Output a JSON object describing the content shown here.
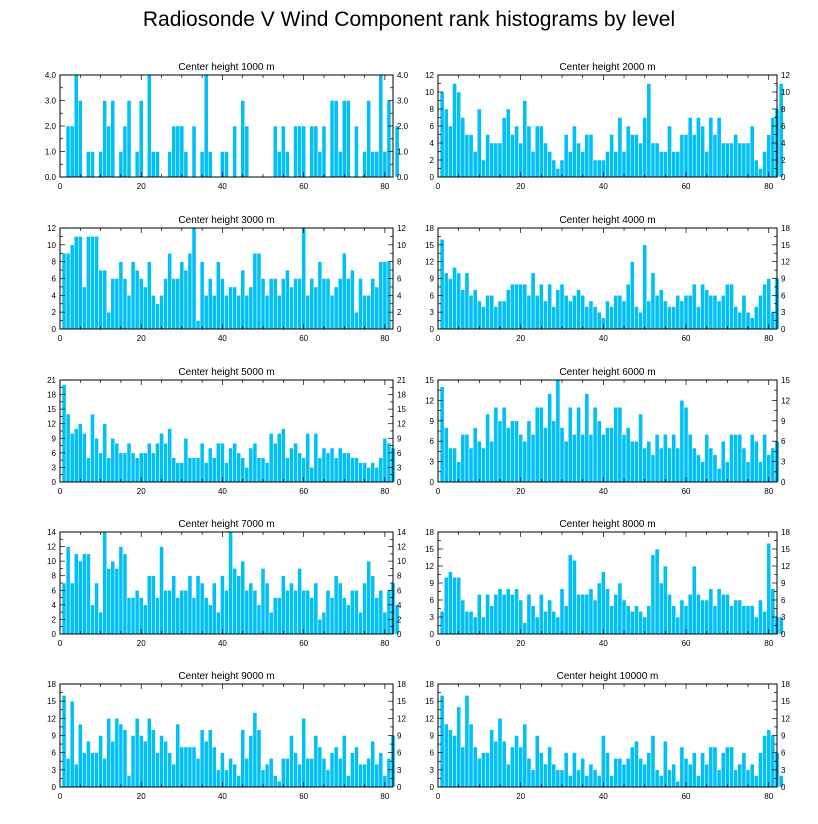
{
  "figure": {
    "title": "Radiosonde V Wind Component rank histograms by level",
    "bar_color": "#00C0F6",
    "background": "#ffffff"
  },
  "chart_data": [
    {
      "type": "bar",
      "title": "Center height 1000 m",
      "xlim": [
        0,
        82
      ],
      "ylim": [
        0,
        4
      ],
      "xticks": [
        0,
        20,
        40,
        60,
        80
      ],
      "yticks": [
        0,
        1,
        2,
        3,
        4
      ],
      "ytick_labels": [
        "0.0",
        "1.0",
        "2.0",
        "3.0",
        "4.0"
      ],
      "x_start": 1,
      "values": [
        0,
        2,
        2,
        4,
        3,
        0,
        1,
        1,
        0,
        1,
        3,
        2,
        3,
        0,
        1,
        2,
        3,
        0,
        1,
        3,
        0,
        4,
        1,
        1,
        0,
        0,
        1,
        2,
        2,
        2,
        1,
        0,
        2,
        0,
        1,
        4,
        1,
        0,
        0,
        1,
        1,
        0,
        2,
        0,
        3,
        2,
        0,
        0,
        0,
        0,
        0,
        0,
        2,
        1,
        2,
        1,
        0,
        2,
        2,
        2,
        0,
        2,
        2,
        1,
        2,
        0,
        3,
        3,
        1,
        3,
        3,
        0,
        2,
        0,
        1,
        3,
        1,
        1,
        4,
        1,
        3,
        0,
        2
      ]
    },
    {
      "type": "bar",
      "title": "Center height 2000 m",
      "xlim": [
        0,
        82
      ],
      "ylim": [
        0,
        12
      ],
      "xticks": [
        0,
        20,
        40,
        60,
        80
      ],
      "yticks": [
        0,
        2,
        4,
        6,
        8,
        10,
        12
      ],
      "x_start": 1,
      "values": [
        10,
        8,
        6,
        11,
        10,
        7,
        5,
        5,
        3,
        8,
        2,
        5,
        4,
        4,
        4,
        7,
        8,
        5,
        6,
        4,
        9,
        6,
        3,
        6,
        6,
        4,
        3,
        2,
        1,
        2,
        5,
        3,
        6,
        4,
        3,
        5,
        5,
        2,
        2,
        2,
        3,
        5,
        3,
        7,
        3,
        6,
        5,
        5,
        4,
        7,
        11,
        4,
        4,
        3,
        3,
        6,
        3,
        3,
        5,
        5,
        7,
        5,
        7,
        6,
        3,
        7,
        5,
        7,
        4,
        4,
        4,
        5,
        4,
        4,
        4,
        6,
        2,
        1,
        3,
        5,
        7,
        8,
        11
      ]
    },
    {
      "type": "bar",
      "title": "Center height 3000 m",
      "xlim": [
        0,
        82
      ],
      "ylim": [
        0,
        12
      ],
      "xticks": [
        0,
        20,
        40,
        60,
        80
      ],
      "yticks": [
        0,
        2,
        4,
        6,
        8,
        10,
        12
      ],
      "x_start": 1,
      "values": [
        9,
        9,
        10,
        11,
        11,
        5,
        11,
        11,
        11,
        7,
        7,
        2,
        6,
        6,
        8,
        6,
        4,
        8,
        7,
        6,
        5,
        8,
        4,
        3,
        4,
        6,
        9,
        6,
        6,
        8,
        7,
        9,
        12,
        1,
        8,
        4,
        6,
        4,
        8,
        6,
        4,
        5,
        5,
        4,
        7,
        4,
        5,
        9,
        9,
        6,
        4,
        6,
        6,
        4,
        6,
        7,
        5,
        6,
        6,
        12,
        4,
        6,
        5,
        8,
        6,
        6,
        4,
        5,
        6,
        9,
        6,
        7,
        2,
        6,
        4,
        4,
        6,
        5,
        8,
        8,
        8
      ]
    },
    {
      "type": "bar",
      "title": "Center height 4000 m",
      "xlim": [
        0,
        82
      ],
      "ylim": [
        0,
        18
      ],
      "xticks": [
        0,
        20,
        40,
        60,
        80
      ],
      "yticks": [
        0,
        3,
        6,
        9,
        12,
        15,
        18
      ],
      "x_start": 1,
      "values": [
        16,
        10,
        9,
        11,
        10,
        7,
        10,
        6,
        7,
        5,
        4,
        6,
        6,
        4,
        5,
        5,
        7,
        8,
        8,
        8,
        8,
        6,
        10,
        6,
        8,
        5,
        8,
        4,
        7,
        8,
        6,
        5,
        6,
        7,
        6,
        4,
        5,
        4,
        3,
        2,
        5,
        4,
        6,
        6,
        5,
        8,
        12,
        4,
        3,
        15,
        5,
        10,
        6,
        7,
        5,
        4,
        4,
        6,
        5,
        6,
        6,
        8,
        4,
        8,
        7,
        6,
        6,
        5,
        6,
        8,
        8,
        4,
        3,
        6,
        3,
        2,
        4,
        6,
        8,
        9,
        3,
        9
      ]
    },
    {
      "type": "bar",
      "title": "Center height 5000 m",
      "xlim": [
        0,
        82
      ],
      "ylim": [
        0,
        21
      ],
      "xticks": [
        0,
        20,
        40,
        60,
        80
      ],
      "yticks": [
        0,
        3,
        6,
        9,
        12,
        15,
        18,
        21
      ],
      "x_start": 1,
      "values": [
        20,
        14,
        10,
        11,
        12,
        10,
        5,
        14,
        9,
        6,
        12,
        5,
        9,
        8,
        6,
        6,
        8,
        6,
        5,
        6,
        6,
        8,
        6,
        8,
        10,
        8,
        11,
        5,
        4,
        4,
        9,
        5,
        5,
        5,
        8,
        4,
        7,
        5,
        8,
        8,
        4,
        7,
        8,
        6,
        5,
        3,
        7,
        8,
        5,
        5,
        4,
        10,
        8,
        10,
        11,
        5,
        7,
        8,
        6,
        5,
        10,
        3,
        10,
        5,
        7,
        6,
        7,
        5,
        7,
        6,
        6,
        5,
        5,
        4,
        4,
        3,
        4,
        3,
        5,
        9,
        8,
        7
      ]
    },
    {
      "type": "bar",
      "title": "Center height 6000 m",
      "xlim": [
        0,
        82
      ],
      "ylim": [
        0,
        15
      ],
      "xticks": [
        0,
        20,
        40,
        60,
        80
      ],
      "yticks": [
        0,
        3,
        6,
        9,
        12,
        15
      ],
      "x_start": 1,
      "values": [
        14,
        8,
        5,
        5,
        3,
        7,
        7,
        5,
        8,
        6,
        5,
        10,
        6,
        11,
        9,
        11,
        8,
        9,
        9,
        7,
        6,
        9,
        7,
        11,
        11,
        8,
        13,
        9,
        15,
        8,
        6,
        11,
        7,
        11,
        7,
        13,
        7,
        11,
        9,
        7,
        8,
        8,
        11,
        11,
        7,
        8,
        6,
        6,
        10,
        5,
        6,
        4,
        7,
        5,
        7,
        5,
        7,
        5,
        12,
        11,
        7,
        5,
        4,
        3,
        7,
        5,
        4,
        2,
        6,
        3,
        7,
        7,
        7,
        5,
        3,
        7,
        6,
        3,
        7,
        4,
        5,
        6
      ]
    },
    {
      "type": "bar",
      "title": "Center height 7000 m",
      "xlim": [
        0,
        82
      ],
      "ylim": [
        0,
        14
      ],
      "xticks": [
        0,
        20,
        40,
        60,
        80
      ],
      "yticks": [
        0,
        2,
        4,
        6,
        8,
        10,
        12,
        14
      ],
      "x_start": 1,
      "values": [
        7,
        12,
        7,
        11,
        10,
        11,
        11,
        4,
        7,
        3,
        14,
        9,
        10,
        9,
        12,
        11,
        5,
        5,
        6,
        5,
        4,
        8,
        8,
        5,
        12,
        6,
        6,
        8,
        5,
        6,
        6,
        8,
        5,
        8,
        7,
        5,
        4,
        7,
        3,
        8,
        6,
        14,
        9,
        8,
        10,
        6,
        7,
        6,
        4,
        9,
        7,
        3,
        5,
        5,
        8,
        6,
        7,
        6,
        9,
        6,
        6,
        5,
        7,
        2,
        3,
        6,
        5,
        8,
        7,
        5,
        4,
        6,
        6,
        3,
        7,
        10,
        8,
        5,
        6,
        3,
        6,
        7,
        4
      ]
    },
    {
      "type": "bar",
      "title": "Center height 8000 m",
      "xlim": [
        0,
        82
      ],
      "ylim": [
        0,
        18
      ],
      "xticks": [
        0,
        20,
        40,
        60,
        80
      ],
      "yticks": [
        0,
        3,
        6,
        9,
        12,
        15,
        18
      ],
      "x_start": 1,
      "values": [
        4,
        10,
        11,
        10,
        10,
        6,
        4,
        4,
        3,
        7,
        3,
        7,
        5,
        7,
        8,
        7,
        8,
        7,
        8,
        6,
        2,
        7,
        5,
        3,
        7,
        4,
        6,
        4,
        3,
        8,
        5,
        14,
        13,
        7,
        7,
        7,
        8,
        6,
        9,
        11,
        8,
        5,
        7,
        9,
        6,
        5,
        4,
        5,
        4,
        3,
        5,
        14,
        15,
        9,
        12,
        7,
        5,
        3,
        6,
        5,
        7,
        12,
        7,
        6,
        6,
        8,
        5,
        8,
        7,
        7,
        5,
        6,
        6,
        5,
        5,
        5,
        3,
        6,
        4,
        16,
        8,
        3,
        3
      ]
    },
    {
      "type": "bar",
      "title": "Center height 9000 m",
      "xlim": [
        0,
        82
      ],
      "ylim": [
        0,
        18
      ],
      "xticks": [
        0,
        20,
        40,
        60,
        80
      ],
      "yticks": [
        0,
        3,
        6,
        9,
        12,
        15,
        18
      ],
      "x_start": 1,
      "values": [
        16,
        5,
        15,
        4,
        11,
        6,
        8,
        6,
        6,
        9,
        5,
        12,
        8,
        12,
        11,
        10,
        2,
        9,
        12,
        9,
        8,
        12,
        10,
        6,
        9,
        8,
        6,
        4,
        11,
        7,
        7,
        7,
        7,
        5,
        10,
        8,
        10,
        7,
        3,
        6,
        3,
        5,
        4,
        2,
        10,
        5,
        9,
        13,
        10,
        3,
        4,
        5,
        2,
        1,
        5,
        5,
        9,
        6,
        4,
        12,
        5,
        5,
        9,
        7,
        5,
        3,
        6,
        7,
        5,
        9,
        2,
        6,
        7,
        4,
        4,
        5,
        8,
        4,
        6,
        2,
        5,
        9
      ]
    },
    {
      "type": "bar",
      "title": "Center height 10000 m",
      "xlim": [
        0,
        82
      ],
      "ylim": [
        0,
        18
      ],
      "xticks": [
        0,
        20,
        40,
        60,
        80
      ],
      "yticks": [
        0,
        3,
        6,
        9,
        12,
        15,
        18
      ],
      "x_start": 1,
      "values": [
        16,
        11,
        10,
        9,
        14,
        7,
        16,
        11,
        7,
        5,
        6,
        6,
        10,
        8,
        12,
        8,
        4,
        7,
        9,
        7,
        11,
        5,
        3,
        9,
        6,
        4,
        7,
        4,
        3,
        3,
        6,
        2,
        6,
        3,
        5,
        2,
        4,
        3,
        2,
        9,
        6,
        2,
        5,
        5,
        4,
        5,
        7,
        8,
        5,
        4,
        6,
        9,
        3,
        2,
        8,
        3,
        4,
        1,
        7,
        5,
        4,
        6,
        2,
        6,
        4,
        7,
        7,
        3,
        6,
        7,
        7,
        3,
        4,
        6,
        3,
        4,
        2,
        6,
        9,
        10,
        9,
        6,
        2
      ]
    }
  ]
}
